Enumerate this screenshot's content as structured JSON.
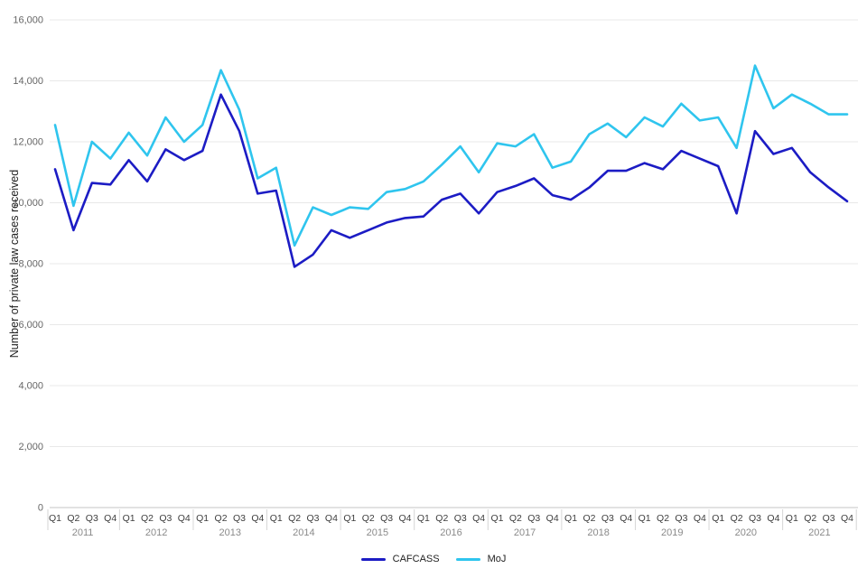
{
  "chart_data": {
    "type": "line",
    "title": "",
    "ylabel": "Number of private law cases received",
    "xlabel": "",
    "ylim": [
      0,
      16000
    ],
    "yticks": [
      0,
      2000,
      4000,
      6000,
      8000,
      10000,
      12000,
      14000,
      16000
    ],
    "ytick_labels": [
      "0",
      "2,000",
      "4,000",
      "6,000",
      "8,000",
      "10,000",
      "12,000",
      "14,000",
      "16,000"
    ],
    "grid": "horizontal-only",
    "legend_position": "bottom-center",
    "quarter_labels": [
      "Q1",
      "Q2",
      "Q3",
      "Q4"
    ],
    "years": [
      "2011",
      "2012",
      "2013",
      "2014",
      "2015",
      "2016",
      "2017",
      "2018",
      "2019",
      "2020",
      "2021"
    ],
    "series": [
      {
        "name": "CAFCASS",
        "color": "#1c1cc4",
        "values": [
          11100,
          9100,
          10650,
          10600,
          11400,
          10700,
          11750,
          11400,
          11700,
          13550,
          12350,
          10300,
          10400,
          7900,
          8300,
          9100,
          8850,
          9100,
          9350,
          9500,
          9550,
          10100,
          10300,
          9650,
          10350,
          10550,
          10800,
          10250,
          10100,
          10500,
          11050,
          11050,
          11300,
          11100,
          11700,
          11450,
          11200,
          9650,
          12350,
          11600,
          11800,
          11000,
          10500,
          10050
        ]
      },
      {
        "name": "MoJ",
        "color": "#2fc5ee",
        "values": [
          12550,
          9900,
          12000,
          11450,
          12300,
          11550,
          12800,
          12000,
          12550,
          14350,
          13050,
          10800,
          11150,
          8600,
          9850,
          9600,
          9850,
          9800,
          10350,
          10450,
          10700,
          11250,
          11850,
          11000,
          11950,
          11850,
          12250,
          11150,
          11350,
          12250,
          12600,
          12150,
          12800,
          12500,
          13250,
          12700,
          12800,
          11800,
          14500,
          13100,
          13550,
          13250,
          12900,
          12900
        ]
      }
    ]
  }
}
